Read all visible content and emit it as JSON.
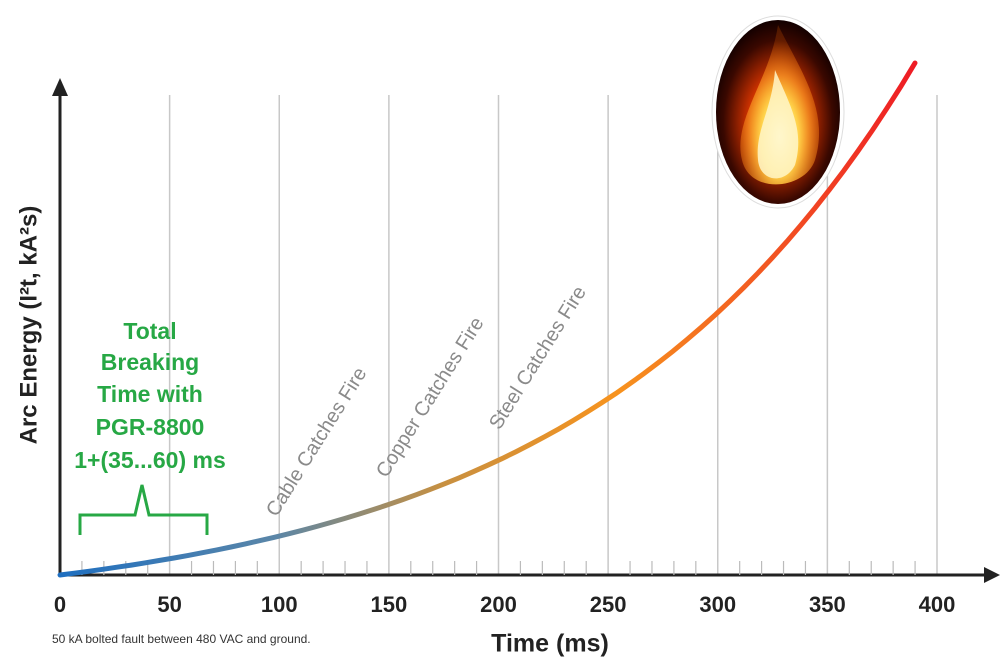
{
  "chart_data": {
    "type": "line",
    "xlabel": "Time (ms)",
    "ylabel": "Arc Energy (I²t, kA²s)",
    "xlim": [
      0,
      400
    ],
    "xticks": [
      0,
      50,
      100,
      150,
      200,
      250,
      300,
      350,
      400
    ],
    "grid": true,
    "annotations": [
      "Cable Catches Fire",
      "Copper Catches Fire",
      "Steel Catches Fire"
    ],
    "breaking_time_label": [
      "Total",
      "Breaking",
      "Time with",
      "PGR-8800",
      "1+(35...60) ms"
    ],
    "note": "50 kA bolted fault between 480 VAC and ground."
  }
}
